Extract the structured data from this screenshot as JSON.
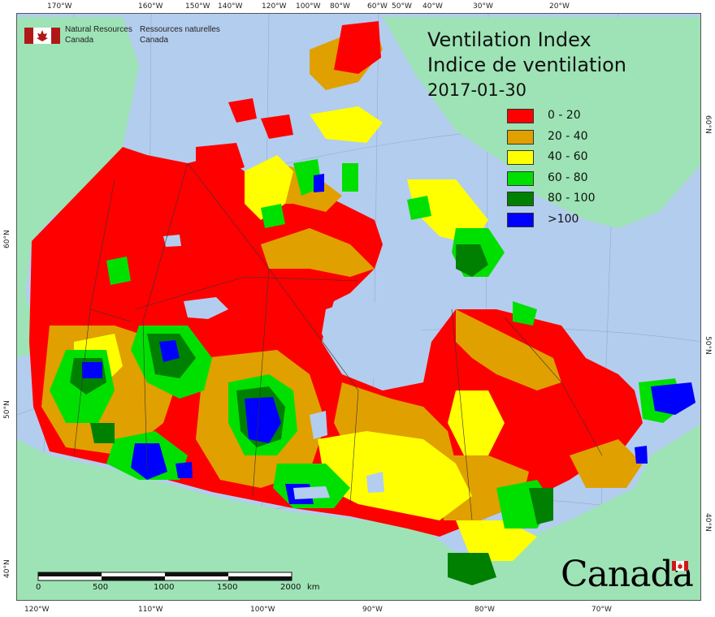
{
  "map": {
    "title_en": "Ventilation Index",
    "title_fr": "Indice de ventilation",
    "date": "2017-01-30",
    "agency": {
      "en_line1": "Natural Resources",
      "en_line2": "Canada",
      "fr_line1": "Ressources naturelles",
      "fr_line2": "Canada"
    },
    "wordmark": "Canada",
    "legend": [
      {
        "label": "0 - 20",
        "color": "#ff0000"
      },
      {
        "label": "20 - 40",
        "color": "#e0a000"
      },
      {
        "label": "40 - 60",
        "color": "#ffff00"
      },
      {
        "label": "60 - 80",
        "color": "#00e000"
      },
      {
        "label": "80 - 100",
        "color": "#008000"
      },
      {
        "label": ">100",
        "color": "#0000ff"
      }
    ],
    "scale": {
      "labels": [
        "0",
        "500",
        "1000",
        "1500",
        "2000"
      ],
      "unit": "km"
    },
    "top_ticks": [
      "170°W",
      "160°W",
      "150°W",
      "140°W",
      "120°W",
      "100°W",
      "80°W",
      "60°W",
      "50°W",
      "40°W",
      "30°W",
      "20°W"
    ],
    "bottom_ticks": [
      "120°W",
      "110°W",
      "100°W",
      "90°W",
      "80°W",
      "70°W"
    ],
    "left_ticks": [
      "60°N",
      "50°N",
      "40°N"
    ],
    "right_ticks": [
      "60°N",
      "50°N",
      "40°N"
    ],
    "colors": {
      "ocean": "#b3cdee",
      "foreign_land": "#9de3b5",
      "lakes": "#b3cdee"
    }
  }
}
